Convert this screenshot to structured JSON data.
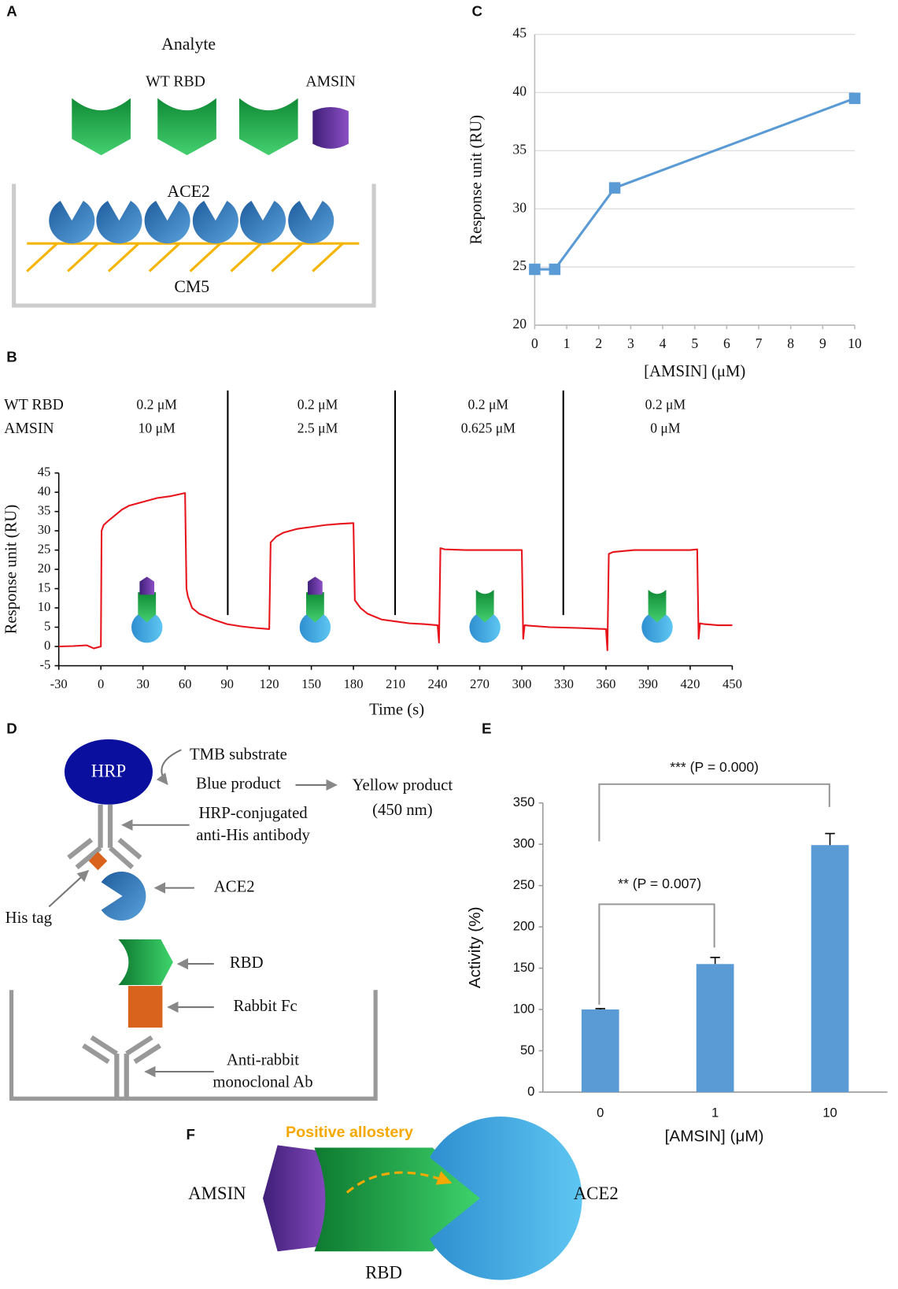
{
  "panels": {
    "A": {
      "label": "A",
      "analyte": "Analyte",
      "wt_rbd": "WT RBD",
      "amsin": "AMSIN",
      "ace2": "ACE2",
      "cm5": "CM5"
    },
    "D": {
      "label": "D",
      "hrp": "HRP",
      "tmb": "TMB substrate",
      "blue": "Blue product",
      "yellow": "Yellow product",
      "wavelength": "(450 nm)",
      "conj": [
        "HRP-conjugated",
        "anti-His antibody"
      ],
      "ace2": "ACE2",
      "his": "His tag",
      "rbd": "RBD",
      "fc": "Rabbit Fc",
      "anti": [
        "Anti-rabbit",
        "monoclonal Ab"
      ]
    },
    "F": {
      "label": "F",
      "allostery": "Positive allostery",
      "amsin": "AMSIN",
      "ace2": "ACE2",
      "rbd": "RBD"
    }
  },
  "chart_data": [
    {
      "type": "line",
      "panel_label": "C",
      "x_label": "[AMSIN] (μM)",
      "y_label": "Response unit (RU)",
      "x": [
        0,
        0.625,
        2.5,
        10
      ],
      "series": [
        {
          "color": "#5b9bd5",
          "marker": "square",
          "values": [
            24.8,
            24.8,
            31.8,
            39.5
          ]
        }
      ],
      "xlim": [
        0,
        10
      ],
      "xticks": [
        0,
        1,
        2,
        3,
        4,
        5,
        6,
        7,
        8,
        9,
        10
      ],
      "ylim": [
        20,
        45
      ],
      "yticks": [
        20,
        25,
        30,
        35,
        40,
        45
      ],
      "grid": true
    },
    {
      "type": "line",
      "panel_label": "B",
      "row_labels": [
        "WT RBD",
        "AMSIN"
      ],
      "conditions": [
        [
          "0.2 μM",
          "10 μM"
        ],
        [
          "0.2 μM",
          "2.5 μM"
        ],
        [
          "0.2 μM",
          "0.625 μM"
        ],
        [
          "0.2 μM",
          "0 μM"
        ]
      ],
      "x_label": "Time (s)",
      "y_label": "Response unit (RU)",
      "x": [
        -30,
        -20,
        -10,
        -5,
        0,
        0.5,
        2,
        5,
        10,
        15,
        20,
        30,
        40,
        50,
        60,
        61,
        62,
        65,
        70,
        80,
        90,
        100,
        110,
        120,
        121,
        125,
        130,
        140,
        150,
        160,
        170,
        180,
        181,
        185,
        190,
        200,
        210,
        220,
        230,
        240,
        241,
        242,
        245,
        260,
        280,
        300,
        301,
        302,
        305,
        320,
        340,
        360,
        361,
        362,
        365,
        380,
        400,
        420,
        425,
        426,
        427,
        430,
        440,
        450
      ],
      "series": [
        {
          "color": "#e8141b",
          "marker": "none",
          "values": [
            0,
            0.1,
            0.3,
            -0.5,
            0,
            30,
            31.5,
            32.5,
            34,
            35.5,
            36.5,
            37.5,
            38.5,
            39,
            39.8,
            15,
            13,
            10,
            8.5,
            7,
            5.8,
            5.2,
            4.8,
            4.5,
            27,
            28.5,
            29.5,
            30.5,
            31,
            31.5,
            31.8,
            32,
            12,
            10,
            8.5,
            7,
            6.5,
            6,
            5.8,
            5.5,
            1,
            25.5,
            25.2,
            25,
            25,
            25,
            2,
            5.5,
            5.4,
            5,
            4.8,
            4.5,
            -1,
            24,
            24.5,
            25,
            25,
            25,
            25.2,
            2,
            6,
            5.8,
            5.5,
            5.5
          ]
        }
      ],
      "xlim": [
        -30,
        450
      ],
      "xticks": [
        -30,
        0,
        30,
        60,
        90,
        120,
        150,
        180,
        210,
        240,
        270,
        300,
        330,
        360,
        390,
        420,
        450
      ],
      "ylim": [
        -5,
        45
      ],
      "yticks": [
        -5,
        0,
        5,
        10,
        15,
        20,
        25,
        30,
        35,
        40,
        45
      ],
      "grid": false
    },
    {
      "type": "bar",
      "panel_label": "E",
      "x_label": "[AMSIN] (μM)",
      "y_label": "Activity (%)",
      "categories": [
        "0",
        "1",
        "10"
      ],
      "values": [
        100,
        155,
        299
      ],
      "errors": [
        1,
        8,
        14
      ],
      "color": "#5b9bd5",
      "ylim": [
        0,
        350
      ],
      "yticks": [
        0,
        50,
        100,
        150,
        200,
        250,
        300,
        350
      ],
      "annotations": [
        "** (P = 0.007)",
        "*** (P = 0.000)"
      ],
      "grid": false
    }
  ]
}
